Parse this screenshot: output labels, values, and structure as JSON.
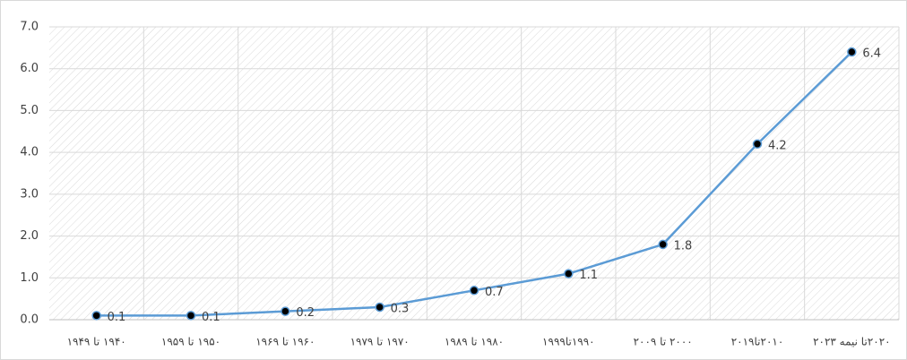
{
  "chart_data": {
    "type": "line",
    "categories": [
      "۱۹۴۰ تا ۱۹۴۹",
      "۱۹۵۰ تا ۱۹۵۹",
      "۱۹۶۰ تا ۱۹۶۹",
      "۱۹۷۰ تا ۱۹۷۹",
      "۱۹۸۰ تا ۱۹۸۹",
      "۱۹۹۰تا۱۹۹۹",
      "۲۰۰۰ تا ۲۰۰۹",
      "۲۰۱۰تا۲۰۱۹",
      "۲۰۲۰تا نیمه ۲۰۲۳"
    ],
    "values": [
      0.1,
      0.1,
      0.2,
      0.3,
      0.7,
      1.1,
      1.8,
      4.2,
      6.4
    ],
    "color": "#5b9bd5",
    "ylim": [
      0,
      7
    ],
    "yticks": [
      {
        "value": 0,
        "label": "0.0"
      },
      {
        "value": 1,
        "label": "1.0"
      },
      {
        "value": 2,
        "label": "2.0"
      },
      {
        "value": 3,
        "label": "3.0"
      },
      {
        "value": 4,
        "label": "4.0"
      },
      {
        "value": 5,
        "label": "5.0"
      },
      {
        "value": 6,
        "label": "6.0"
      },
      {
        "value": 7,
        "label": "7.0"
      }
    ],
    "grid": true
  }
}
